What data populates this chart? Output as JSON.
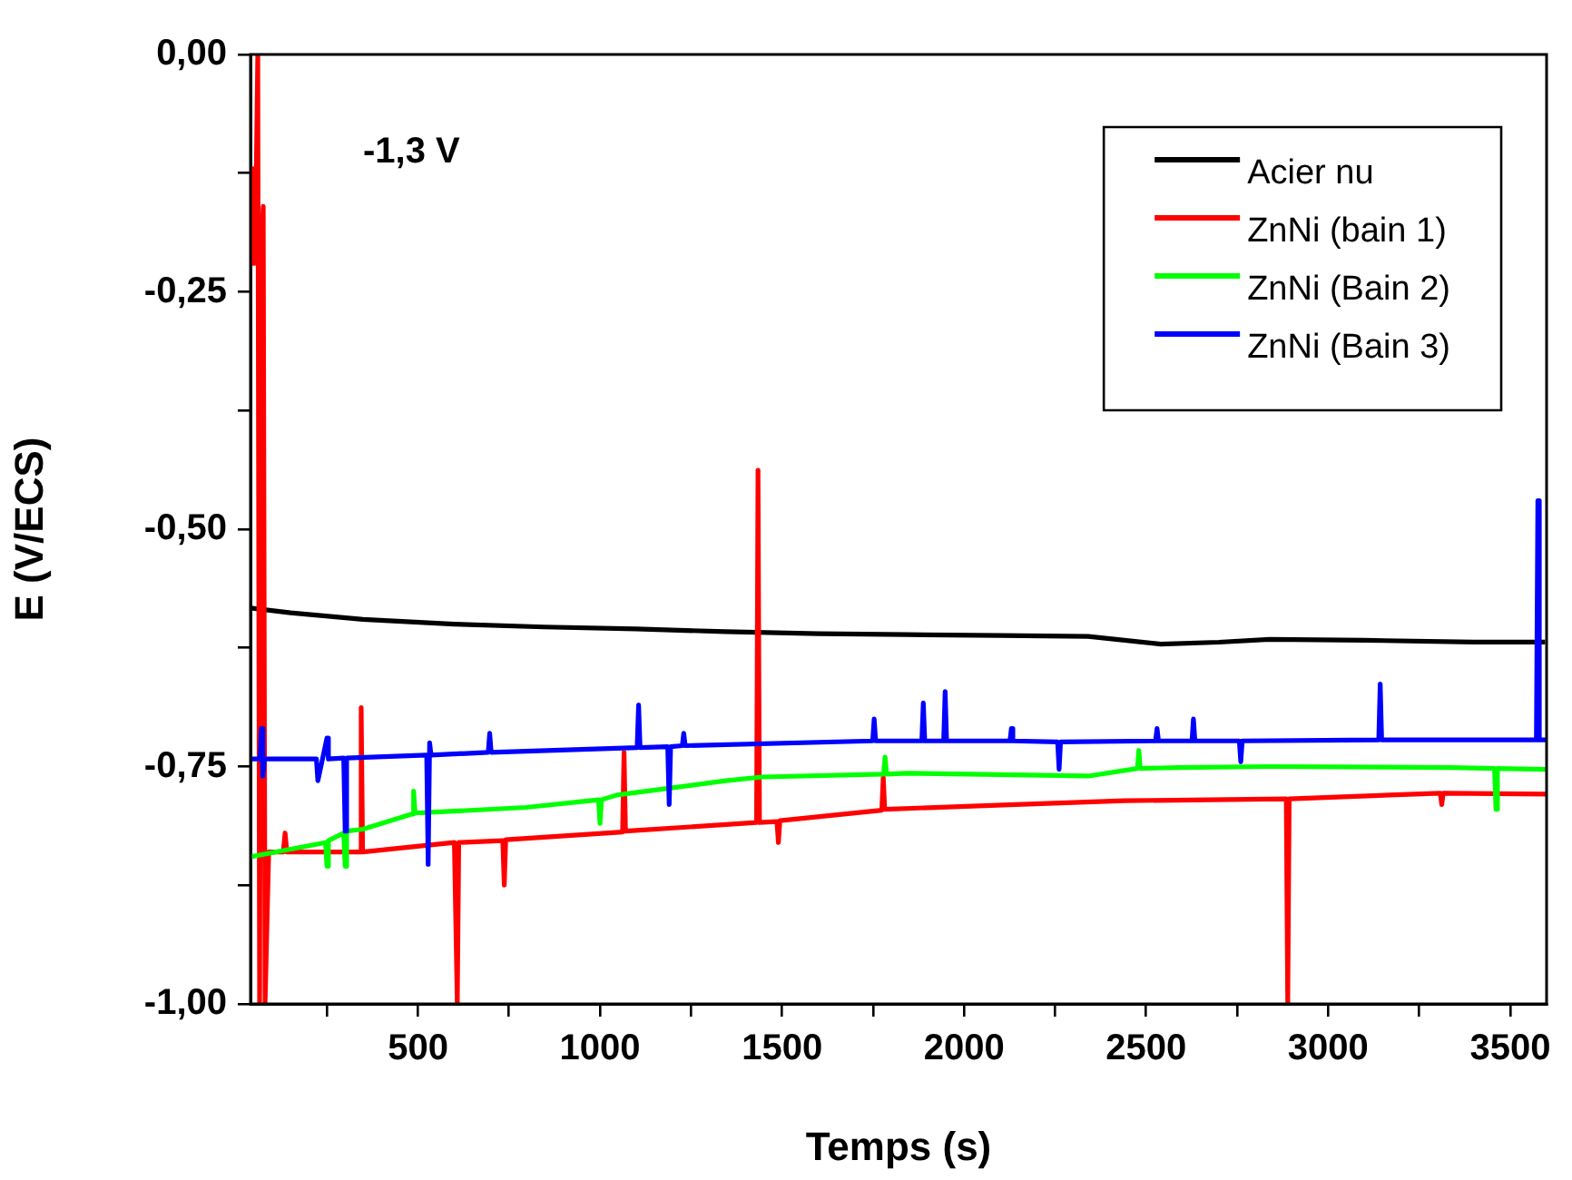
{
  "chart_data": {
    "type": "line",
    "xlabel": "Temps (s)",
    "ylabel": "E (V/ECS)",
    "annotations": [
      "-1,3 V"
    ],
    "xlim": [
      40,
      3600
    ],
    "xticks": [
      {
        "value": 250,
        "label": null
      },
      500,
      {
        "value": 750,
        "label": null
      },
      1000,
      {
        "value": 1250,
        "label": null
      },
      1500,
      {
        "value": 1750,
        "label": null
      },
      2000,
      {
        "value": 2250,
        "label": null
      },
      2500,
      {
        "value": 2750,
        "label": null
      },
      3000,
      {
        "value": 3250,
        "label": null
      },
      3500
    ],
    "ylim": [
      -1,
      0
    ],
    "yticks": [
      {
        "value": -1,
        "label": "-1,00"
      },
      {
        "value": -0.875,
        "label": null
      },
      {
        "value": -0.75,
        "label": "-0,75"
      },
      {
        "value": -0.625,
        "label": null
      },
      {
        "value": -0.5,
        "label": "-0,50"
      },
      {
        "value": -0.375,
        "label": null
      },
      {
        "value": -0.25,
        "label": "-0,25"
      },
      {
        "value": -0.125,
        "label": null
      },
      {
        "value": 0,
        "label": "0,00"
      }
    ],
    "grid": false,
    "legend": "top right",
    "marker": "none",
    "line_style": "solid",
    "series": [
      {
        "name": "Acier nu",
        "color": "#000000",
        "x": [
          40,
          150,
          349,
          600,
          847,
          1100,
          1345,
          1600,
          1843,
          2100,
          2341,
          2540,
          2700,
          2839,
          3100,
          3400,
          3596
        ],
        "values": [
          -0.583,
          -0.588,
          -0.595,
          -0.6,
          -0.603,
          -0.605,
          -0.608,
          -0.61,
          -0.611,
          -0.612,
          -0.613,
          -0.621,
          -0.619,
          -0.616,
          -0.617,
          -0.619,
          -0.619
        ]
      },
      {
        "name": "ZnNi (bain 1)",
        "color": "#ff0000",
        "x": [
          40,
          45,
          50,
          55,
          60,
          65,
          70,
          75,
          80,
          90,
          130,
          135,
          140,
          340,
          344,
          348,
          600,
          608,
          612,
          733,
          737,
          741,
          1062,
          1066,
          1070,
          1430,
          1434,
          1438,
          1486,
          1490,
          1494,
          1774,
          1778,
          1782,
          2142,
          2440,
          2885,
          2889,
          2893,
          3308,
          3312,
          3316,
          3600
        ],
        "values": [
          -0.22,
          -0.12,
          -0.22,
          -0.15,
          0.0,
          -1.0,
          -0.2,
          -0.16,
          -1.0,
          -0.84,
          -0.84,
          -0.82,
          -0.84,
          -0.84,
          -0.688,
          -0.84,
          -0.83,
          -1.0,
          -0.83,
          -0.828,
          -0.875,
          -0.827,
          -0.819,
          -0.735,
          -0.818,
          -0.809,
          -0.438,
          -0.809,
          -0.808,
          -0.83,
          -0.807,
          -0.796,
          -0.761,
          -0.795,
          -0.79,
          -0.786,
          -0.784,
          -1.0,
          -0.784,
          -0.778,
          -0.79,
          -0.778,
          -0.779
        ]
      },
      {
        "name": "ZnNi (Bain 2)",
        "color": "#00ff00",
        "x": [
          40,
          246,
          250,
          254,
          296,
          300,
          304,
          349,
          484,
          488,
          492,
          598,
          797,
          996,
          1000,
          1004,
          1046,
          1345,
          1445,
          1779,
          1783,
          1787,
          1843,
          2341,
          2476,
          2480,
          2484,
          2590,
          2839,
          3337,
          3457,
          3461,
          3465,
          3600
        ],
        "values": [
          -0.845,
          -0.83,
          -0.855,
          -0.828,
          -0.82,
          -0.855,
          -0.818,
          -0.816,
          -0.8,
          -0.776,
          -0.799,
          -0.797,
          -0.793,
          -0.785,
          -0.81,
          -0.785,
          -0.78,
          -0.765,
          -0.761,
          -0.758,
          -0.74,
          -0.758,
          -0.757,
          -0.76,
          -0.752,
          -0.733,
          -0.752,
          -0.751,
          -0.75,
          -0.751,
          -0.752,
          -0.795,
          -0.752,
          -0.753
        ]
      },
      {
        "name": "ZnNi (Bain 3)",
        "color": "#0000ff",
        "x": [
          40,
          66,
          70,
          74,
          78,
          221,
          225,
          250,
          254,
          296,
          300,
          304,
          524,
          528,
          532,
          536,
          693,
          697,
          701,
          1102,
          1106,
          1110,
          1186,
          1190,
          1194,
          1226,
          1230,
          1234,
          1749,
          1753,
          1757,
          1884,
          1888,
          1892,
          1944,
          1948,
          1952,
          2126,
          2130,
          2134,
          2257,
          2261,
          2265,
          2526,
          2530,
          2534,
          2626,
          2630,
          2634,
          2756,
          2760,
          2764,
          3139,
          3143,
          3147,
          3572,
          3576,
          3580,
          3600
        ],
        "values": [
          -0.742,
          -0.742,
          -0.71,
          -0.76,
          -0.742,
          -0.742,
          -0.765,
          -0.72,
          -0.742,
          -0.741,
          -0.818,
          -0.741,
          -0.738,
          -0.853,
          -0.725,
          -0.738,
          -0.735,
          -0.715,
          -0.735,
          -0.73,
          -0.685,
          -0.73,
          -0.729,
          -0.79,
          -0.729,
          -0.728,
          -0.715,
          -0.728,
          -0.723,
          -0.7,
          -0.723,
          -0.723,
          -0.683,
          -0.723,
          -0.723,
          -0.671,
          -0.723,
          -0.723,
          -0.71,
          -0.723,
          -0.724,
          -0.753,
          -0.724,
          -0.723,
          -0.71,
          -0.723,
          -0.723,
          -0.7,
          -0.723,
          -0.723,
          -0.745,
          -0.723,
          -0.722,
          -0.663,
          -0.722,
          -0.722,
          -0.47,
          -0.722,
          -0.722
        ]
      }
    ]
  }
}
